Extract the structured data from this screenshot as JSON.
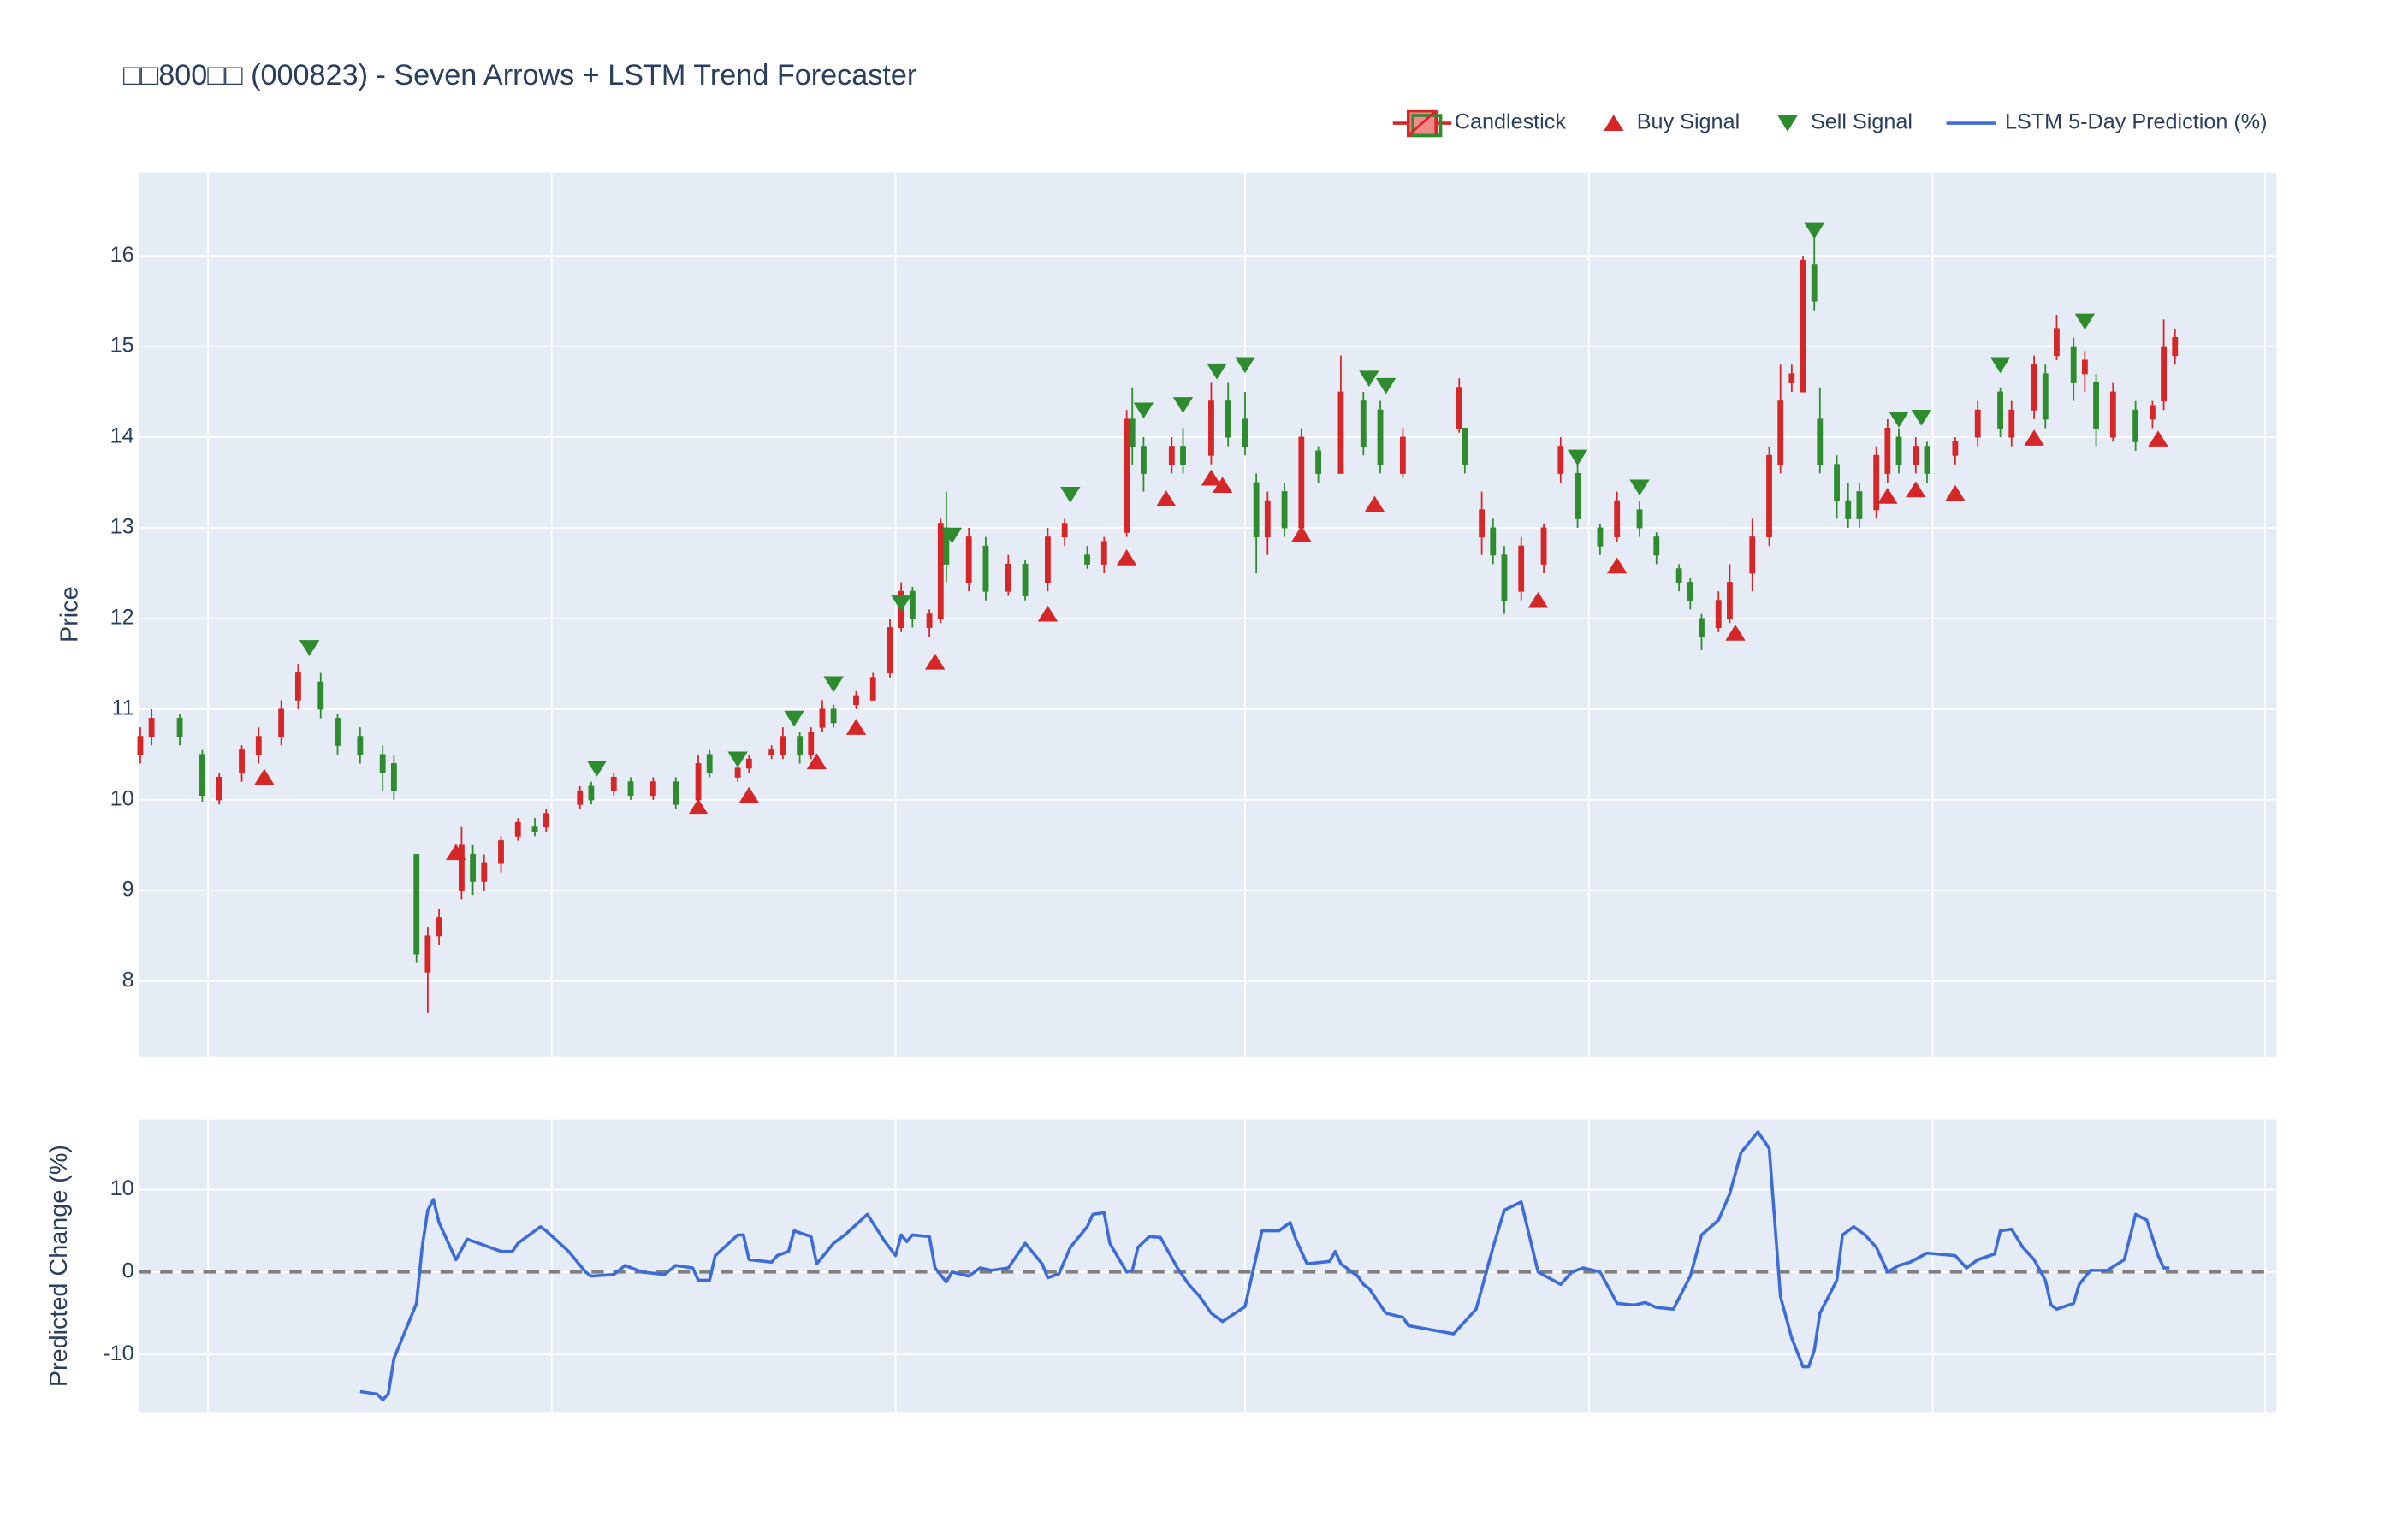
{
  "chart_data": [
    {
      "type": "candlestick",
      "title": "□□800□□ (000823) - Seven Arrows + LSTM Trend Forecaster",
      "y_label": "Price",
      "legend": "top-right",
      "grid": true,
      "xlim": [
        -12.3,
        367.0
      ],
      "xticks": [
        0,
        61,
        122,
        184,
        245,
        306,
        365
      ],
      "ylim": [
        7.17,
        16.92
      ],
      "yticks": [
        8,
        9,
        10,
        11,
        12,
        13,
        14,
        15,
        16
      ],
      "series": [
        {
          "name": "Candlestick",
          "type": "candlestick",
          "increasing_color": "#d62728",
          "decreasing_color": "#2e8b2e",
          "x": [
            -12,
            -10,
            -5,
            -1,
            2,
            6,
            9,
            13,
            16,
            20,
            23,
            27,
            31,
            33,
            37,
            39,
            41,
            45,
            47,
            49,
            52,
            55,
            58,
            60,
            66,
            68,
            72,
            75,
            79,
            83,
            87,
            89,
            94,
            96,
            100,
            102,
            105,
            107,
            109,
            111,
            115,
            118,
            121,
            123,
            125,
            128,
            130,
            131,
            135,
            138,
            142,
            145,
            149,
            152,
            156,
            159,
            163,
            164,
            166,
            171,
            173,
            178,
            181,
            184,
            186,
            188,
            191,
            194,
            197,
            201,
            205,
            208,
            212,
            222,
            223,
            226,
            228,
            230,
            233,
            237,
            240,
            243,
            247,
            250,
            254,
            257,
            261,
            263,
            265,
            268,
            270,
            274,
            277,
            279,
            281,
            283,
            285,
            286,
            289,
            291,
            293,
            296,
            298,
            300,
            303,
            305,
            310,
            314,
            318,
            320,
            324,
            326,
            328,
            331,
            333,
            335,
            338,
            342,
            345,
            347,
            349
          ],
          "open": [
            10.5,
            10.7,
            10.9,
            10.5,
            10.0,
            10.3,
            10.5,
            10.7,
            11.1,
            11.3,
            10.9,
            10.7,
            10.5,
            10.4,
            9.4,
            8.1,
            8.5,
            9.0,
            9.4,
            9.1,
            9.3,
            9.6,
            9.7,
            9.7,
            9.95,
            10.15,
            10.1,
            10.2,
            10.05,
            10.2,
            10.0,
            10.5,
            10.25,
            10.35,
            10.5,
            10.5,
            10.7,
            10.5,
            10.8,
            11.0,
            11.05,
            11.1,
            11.4,
            11.9,
            12.3,
            11.9,
            12.0,
            13.0,
            12.4,
            12.8,
            12.3,
            12.6,
            12.4,
            12.9,
            12.7,
            12.6,
            12.95,
            14.2,
            13.9,
            13.7,
            13.9,
            13.8,
            14.4,
            14.2,
            13.5,
            12.9,
            13.4,
            13.0,
            13.85,
            13.6,
            14.4,
            14.3,
            13.6,
            14.1,
            14.1,
            12.9,
            13.0,
            12.7,
            12.3,
            12.6,
            13.6,
            13.6,
            13.0,
            12.9,
            13.2,
            12.9,
            12.55,
            12.4,
            12.0,
            11.9,
            12.0,
            12.5,
            12.9,
            13.7,
            14.6,
            14.5,
            15.9,
            14.2,
            13.7,
            13.3,
            13.4,
            13.2,
            13.6,
            14.0,
            13.7,
            13.9,
            13.8,
            14.0,
            14.5,
            14.0,
            14.3,
            14.7,
            14.9,
            15.0,
            14.7,
            14.6,
            14.0,
            14.3,
            14.2,
            14.4,
            14.9
          ],
          "high": [
            10.8,
            11.0,
            10.95,
            10.55,
            10.3,
            10.6,
            10.8,
            11.1,
            11.5,
            11.4,
            10.95,
            10.8,
            10.6,
            10.5,
            9.4,
            8.6,
            8.8,
            9.7,
            9.5,
            9.4,
            9.6,
            9.8,
            9.8,
            9.9,
            10.15,
            10.2,
            10.3,
            10.25,
            10.25,
            10.25,
            10.5,
            10.55,
            10.4,
            10.5,
            10.6,
            10.8,
            10.75,
            10.8,
            11.1,
            11.05,
            11.2,
            11.4,
            12.0,
            12.4,
            12.35,
            12.1,
            13.1,
            13.4,
            13.0,
            12.9,
            12.7,
            12.65,
            13.0,
            13.1,
            12.8,
            12.9,
            14.3,
            14.55,
            14.0,
            14.0,
            14.1,
            14.6,
            14.6,
            14.5,
            13.6,
            13.4,
            13.5,
            14.1,
            13.9,
            14.9,
            14.5,
            14.4,
            14.1,
            14.65,
            14.1,
            13.4,
            13.1,
            12.8,
            12.9,
            13.05,
            14.0,
            13.7,
            13.05,
            13.4,
            13.3,
            12.95,
            12.6,
            12.45,
            12.05,
            12.3,
            12.6,
            13.1,
            13.9,
            14.8,
            14.8,
            16.0,
            16.3,
            14.55,
            13.8,
            13.5,
            13.5,
            13.9,
            14.2,
            14.1,
            14.0,
            13.95,
            14.0,
            14.4,
            14.55,
            14.4,
            14.9,
            14.8,
            15.35,
            15.1,
            14.95,
            14.7,
            14.6,
            14.4,
            14.4,
            15.3,
            15.2
          ],
          "low": [
            10.4,
            10.6,
            10.6,
            9.98,
            9.95,
            10.2,
            10.4,
            10.6,
            11.0,
            10.9,
            10.5,
            10.4,
            10.1,
            10.0,
            8.2,
            7.65,
            8.4,
            8.9,
            8.95,
            9.0,
            9.2,
            9.55,
            9.6,
            9.65,
            9.9,
            9.95,
            10.05,
            10.0,
            10.0,
            9.9,
            9.95,
            10.25,
            10.2,
            10.3,
            10.45,
            10.45,
            10.4,
            10.45,
            10.75,
            10.8,
            11.0,
            11.1,
            11.35,
            11.85,
            11.9,
            11.8,
            11.95,
            12.4,
            12.3,
            12.2,
            12.25,
            12.2,
            12.3,
            12.8,
            12.55,
            12.5,
            12.9,
            13.7,
            13.4,
            13.6,
            13.6,
            13.7,
            13.9,
            13.8,
            12.5,
            12.7,
            12.9,
            12.9,
            13.5,
            13.6,
            13.8,
            13.6,
            13.55,
            14.05,
            13.6,
            12.7,
            12.6,
            12.05,
            12.2,
            12.5,
            13.5,
            13.0,
            12.7,
            12.85,
            12.9,
            12.6,
            12.3,
            12.1,
            11.65,
            11.85,
            11.95,
            12.3,
            12.8,
            13.6,
            14.5,
            14.5,
            15.4,
            13.6,
            13.1,
            13.0,
            13.0,
            13.1,
            13.5,
            13.6,
            13.6,
            13.5,
            13.7,
            13.9,
            14.0,
            13.9,
            14.2,
            14.1,
            14.85,
            14.4,
            14.5,
            13.9,
            13.95,
            13.85,
            14.1,
            14.3,
            14.8
          ],
          "close": [
            10.7,
            10.9,
            10.7,
            10.05,
            10.25,
            10.55,
            10.7,
            11.0,
            11.4,
            11.0,
            10.6,
            10.5,
            10.3,
            10.1,
            8.3,
            8.5,
            8.7,
            9.5,
            9.1,
            9.3,
            9.55,
            9.75,
            9.65,
            9.85,
            10.1,
            10.0,
            10.25,
            10.05,
            10.2,
            9.95,
            10.4,
            10.3,
            10.35,
            10.45,
            10.55,
            10.7,
            10.5,
            10.75,
            11.0,
            10.85,
            11.15,
            11.35,
            11.9,
            12.3,
            12.0,
            12.05,
            13.05,
            12.6,
            12.9,
            12.3,
            12.6,
            12.25,
            12.9,
            13.05,
            12.6,
            12.85,
            14.2,
            13.9,
            13.6,
            13.9,
            13.7,
            14.4,
            14.0,
            13.9,
            12.9,
            13.3,
            13.0,
            14.0,
            13.6,
            14.5,
            13.9,
            13.7,
            14.0,
            14.55,
            13.7,
            13.2,
            12.7,
            12.2,
            12.8,
            13.0,
            13.9,
            13.1,
            12.8,
            13.3,
            13.0,
            12.7,
            12.4,
            12.2,
            11.8,
            12.2,
            12.4,
            12.9,
            13.8,
            14.4,
            14.7,
            15.95,
            15.5,
            13.7,
            13.3,
            13.1,
            13.1,
            13.8,
            14.1,
            13.7,
            13.9,
            13.6,
            13.95,
            14.3,
            14.1,
            14.3,
            14.8,
            14.2,
            15.2,
            14.6,
            14.85,
            14.1,
            14.5,
            13.95,
            14.35,
            15.0,
            15.1
          ]
        },
        {
          "name": "Buy Signal",
          "type": "marker",
          "symbol": "triangle-up",
          "color": "#d62728",
          "x": [
            10,
            44,
            87,
            96,
            108,
            115,
            129,
            149,
            163,
            170,
            178,
            180,
            194,
            207,
            236,
            250,
            271,
            298,
            303,
            310,
            324,
            346
          ],
          "values": [
            10.25,
            9.42,
            9.92,
            10.05,
            10.42,
            10.8,
            11.52,
            12.05,
            12.67,
            13.32,
            13.55,
            13.47,
            12.93,
            13.26,
            12.2,
            12.58,
            11.84,
            13.35,
            13.42,
            13.38,
            13.99,
            13.98
          ]
        },
        {
          "name": "Sell Signal",
          "type": "marker",
          "symbol": "triangle-down",
          "color": "#2e8b2e",
          "x": [
            18,
            69,
            94,
            104,
            111,
            123,
            132,
            153,
            166,
            173,
            179,
            184,
            206,
            209,
            243,
            254,
            285,
            300,
            304,
            318,
            333
          ],
          "values": [
            11.68,
            10.35,
            10.45,
            10.9,
            11.28,
            12.17,
            12.92,
            13.37,
            14.3,
            14.36,
            14.73,
            14.8,
            14.65,
            14.57,
            13.78,
            13.45,
            16.28,
            14.2,
            14.22,
            14.8,
            15.28
          ]
        }
      ]
    },
    {
      "type": "line",
      "y_label": "Predicted Change (%)",
      "grid": true,
      "reference_line": 0,
      "xlim": [
        -12.3,
        367.0
      ],
      "xticks": [
        0,
        61,
        122,
        184,
        245,
        306,
        365
      ],
      "ylim": [
        -17.0,
        18.5
      ],
      "yticks": [
        -10,
        0,
        10
      ],
      "series": [
        {
          "name": "LSTM 5-Day Prediction (%)",
          "color": "#3d6bd8",
          "x": [
            27,
            30,
            31,
            32,
            33,
            37,
            38,
            39,
            40,
            41,
            44,
            46,
            48,
            52,
            54,
            55,
            59,
            60,
            64,
            67,
            68,
            72,
            74,
            77,
            81,
            83,
            86,
            87,
            89,
            90,
            94,
            95,
            96,
            100,
            101,
            103,
            104,
            107,
            108,
            111,
            113,
            117,
            120,
            122,
            123,
            124,
            125,
            128,
            129,
            131,
            132,
            135,
            137,
            139,
            142,
            145,
            148,
            149,
            151,
            153,
            156,
            157,
            159,
            160,
            163,
            164,
            165,
            167,
            169,
            172,
            174,
            176,
            178,
            180,
            184,
            187,
            190,
            192,
            193,
            195,
            199,
            200,
            201,
            204,
            205,
            206,
            208,
            209,
            212,
            213,
            221,
            225,
            228,
            230,
            233,
            236,
            240,
            242,
            244,
            247,
            250,
            253,
            255,
            257,
            260,
            263,
            265,
            268,
            270,
            272,
            275,
            277,
            279,
            281,
            283,
            284,
            285,
            286,
            289,
            290,
            292,
            294,
            296,
            298,
            300,
            302,
            305,
            310,
            312,
            314,
            317,
            318,
            320,
            322,
            324,
            326,
            327,
            328,
            331,
            332,
            334,
            337,
            340,
            342,
            344,
            346,
            347,
            348
          ],
          "values": [
            -14.5,
            -14.8,
            -15.5,
            -14.8,
            -10.5,
            -3.8,
            3,
            7.5,
            8.8,
            6,
            1.5,
            4,
            3.5,
            2.5,
            2.5,
            3.5,
            5.5,
            5,
            2.5,
            0,
            -0.5,
            -0.3,
            0.8,
            0,
            -0.3,
            0.8,
            0.5,
            -1,
            -1,
            2,
            4.5,
            4.5,
            1.5,
            1.2,
            2,
            2.5,
            5,
            4.3,
            1,
            3.5,
            4.5,
            7,
            3.8,
            2,
            4.5,
            3.7,
            4.5,
            4.3,
            0.5,
            -1.2,
            0,
            -0.5,
            0.5,
            0.2,
            0.5,
            3.5,
            1,
            -0.7,
            -0.2,
            3,
            5.5,
            7,
            7.2,
            3.5,
            0,
            0.2,
            3,
            4.3,
            4.2,
            0.5,
            -1.5,
            -3,
            -5,
            -6,
            -4.2,
            5,
            5,
            6,
            4,
            1,
            1.3,
            2.5,
            1,
            -0.5,
            -1.5,
            -2,
            -4,
            -5,
            -5.5,
            -6.5,
            -7.5,
            -4.5,
            3,
            7.5,
            8.5,
            0,
            -1.5,
            0,
            0.5,
            0,
            -3.8,
            -4,
            -3.7,
            -4.3,
            -4.5,
            -0.5,
            4.5,
            6.3,
            9.5,
            14.5,
            17,
            15,
            -3,
            -8,
            -11.5,
            -11.5,
            -9.5,
            -5,
            -1,
            4.5,
            5.5,
            4.5,
            3,
            0,
            0.8,
            1.2,
            2.3,
            2,
            0.5,
            1.5,
            2.2,
            5,
            5.2,
            3,
            1.5,
            -1,
            -4,
            -4.5,
            -3.8,
            -1.5,
            0.2,
            0.2,
            1.5,
            7,
            6.3,
            2,
            0.5,
            0.5
          ]
        }
      ]
    }
  ]
}
